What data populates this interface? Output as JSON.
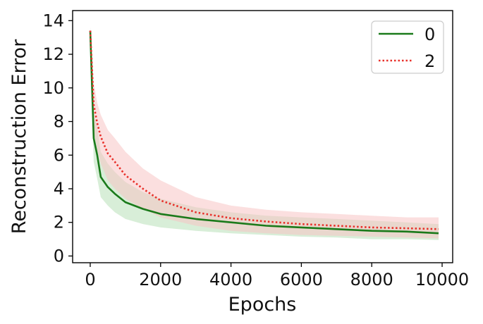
{
  "chart_data": {
    "type": "line",
    "title": "",
    "xlabel": "Epochs",
    "ylabel": "Reconstruction Error",
    "xlim": [
      -500,
      10300
    ],
    "ylim": [
      -0.4,
      14.6
    ],
    "xticks": [
      0,
      2000,
      4000,
      6000,
      8000,
      10000
    ],
    "yticks": [
      0,
      2,
      4,
      6,
      8,
      10,
      12,
      14
    ],
    "grid": false,
    "legend_position": "top-right",
    "series": [
      {
        "name": "0",
        "color": "#1a7a1a",
        "linestyle": "solid",
        "band_color": "#b8e0b8",
        "x": [
          0,
          100,
          200,
          300,
          500,
          700,
          1000,
          1500,
          2000,
          3000,
          4000,
          5000,
          6000,
          7000,
          8000,
          9000,
          9900
        ],
        "y": [
          13.4,
          7.0,
          6.0,
          4.7,
          4.1,
          3.7,
          3.2,
          2.8,
          2.5,
          2.2,
          2.0,
          1.8,
          1.7,
          1.6,
          1.5,
          1.45,
          1.35
        ],
        "lower": [
          13.1,
          5.6,
          4.6,
          3.5,
          3.0,
          2.6,
          2.2,
          1.9,
          1.7,
          1.5,
          1.35,
          1.25,
          1.15,
          1.1,
          1.0,
          1.0,
          0.95
        ],
        "upper": [
          13.6,
          8.6,
          7.6,
          6.2,
          5.5,
          5.0,
          4.4,
          3.8,
          3.4,
          2.9,
          2.6,
          2.4,
          2.3,
          2.2,
          2.1,
          2.0,
          1.9
        ]
      },
      {
        "name": "2",
        "color": "#e8302a",
        "linestyle": "dotted",
        "band_color": "#f7c4c4",
        "x": [
          0,
          100,
          200,
          300,
          500,
          700,
          1000,
          1500,
          2000,
          3000,
          4000,
          5000,
          6000,
          7000,
          8000,
          9000,
          9900
        ],
        "y": [
          13.4,
          9.0,
          7.9,
          7.1,
          6.1,
          5.6,
          4.8,
          4.0,
          3.3,
          2.6,
          2.25,
          2.05,
          1.9,
          1.8,
          1.7,
          1.65,
          1.6
        ],
        "lower": [
          13.1,
          7.5,
          6.3,
          5.5,
          4.5,
          4.0,
          3.4,
          2.8,
          2.3,
          1.8,
          1.5,
          1.35,
          1.25,
          1.2,
          1.15,
          1.1,
          1.05
        ],
        "upper": [
          13.6,
          10.3,
          9.1,
          8.4,
          7.5,
          7.0,
          6.2,
          5.2,
          4.5,
          3.5,
          3.0,
          2.75,
          2.6,
          2.5,
          2.4,
          2.3,
          2.3
        ]
      }
    ]
  }
}
